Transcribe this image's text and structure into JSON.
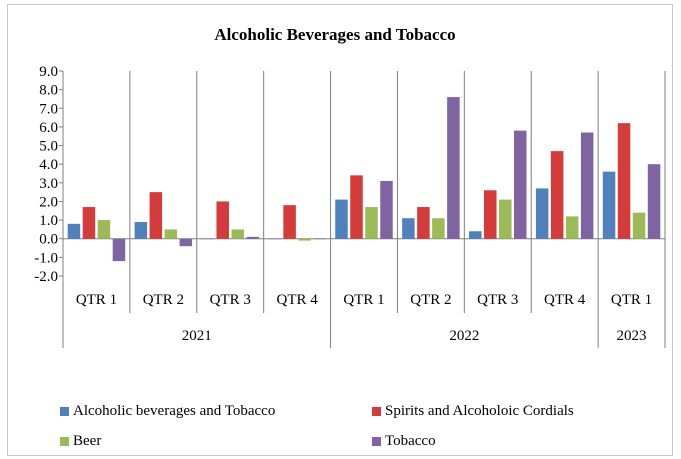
{
  "chart_data": {
    "type": "bar",
    "title": "Alcoholic Beverages and Tobacco",
    "ylim": [
      -2.0,
      9.0
    ],
    "y_ticks": [
      "9.0",
      "8.0",
      "7.0",
      "6.0",
      "5.0",
      "4.0",
      "3.0",
      "2.0",
      "1.0",
      "0.0",
      "-1.0",
      "-2.0"
    ],
    "categories": [
      "QTR 1",
      "QTR 2",
      "QTR 3",
      "QTR 4",
      "QTR 1",
      "QTR 2",
      "QTR 3",
      "QTR 4",
      "QTR 1"
    ],
    "groups": [
      {
        "label": "2021",
        "count": 4
      },
      {
        "label": "2022",
        "count": 4
      },
      {
        "label": "2023",
        "count": 1
      }
    ],
    "series": [
      {
        "name": "Alcoholic beverages and Tobacco",
        "color": "#4f81bd",
        "values": [
          0.8,
          0.9,
          0.0,
          0.0,
          2.1,
          1.1,
          0.4,
          2.7,
          3.6
        ]
      },
      {
        "name": "Spirits and Alcoholoic Cordials",
        "color": "#d43b3b",
        "values": [
          1.7,
          2.5,
          2.0,
          1.8,
          3.4,
          1.7,
          2.6,
          4.7,
          6.2
        ]
      },
      {
        "name": "Beer",
        "color": "#9bbb59",
        "values": [
          1.0,
          0.5,
          0.5,
          -0.1,
          1.7,
          1.1,
          2.1,
          1.2,
          1.4
        ]
      },
      {
        "name": "Tobacco",
        "color": "#8064a2",
        "values": [
          -1.2,
          -0.4,
          0.1,
          0.0,
          3.1,
          7.6,
          5.8,
          5.7,
          4.0
        ]
      }
    ],
    "legend_position": "bottom",
    "grid": "vertical category separators"
  }
}
